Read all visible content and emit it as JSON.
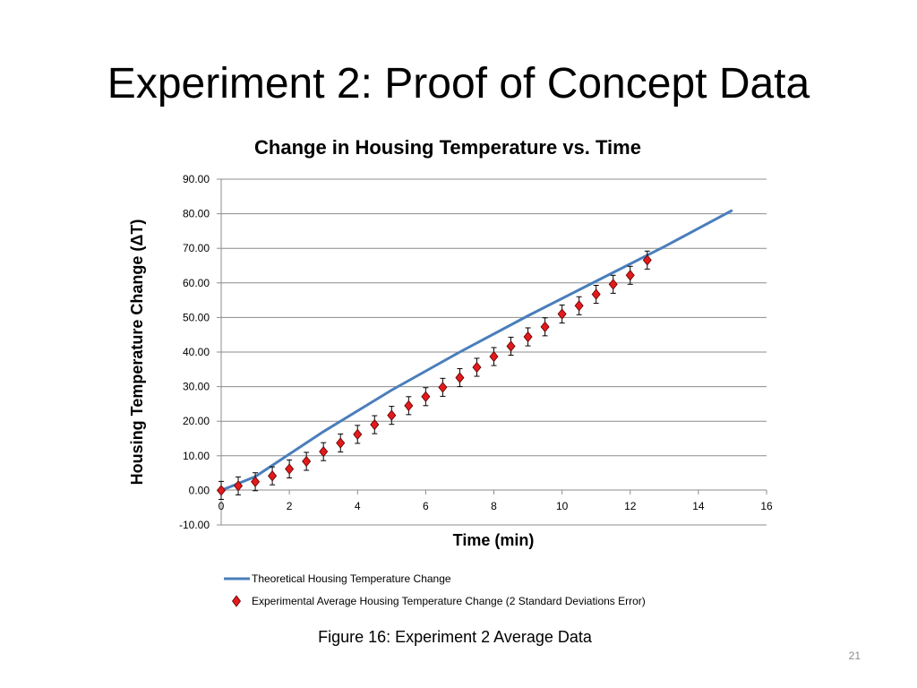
{
  "slide": {
    "title": "Experiment 2: Proof of Concept Data",
    "caption": "Figure 16: Experiment 2 Average Data",
    "page_number": "21"
  },
  "chart_data": {
    "type": "scatter",
    "title": "Change in Housing Temperature vs. Time",
    "xlabel": "Time (min)",
    "ylabel": "Housing Temperature Change (ΔT)",
    "xlim": [
      0,
      16
    ],
    "ylim": [
      -10,
      90
    ],
    "x_ticks": [
      0,
      2,
      4,
      6,
      8,
      10,
      12,
      14,
      16
    ],
    "y_ticks": [
      -10,
      0,
      10,
      20,
      30,
      40,
      50,
      60,
      70,
      80,
      90
    ],
    "grid": "horizontal",
    "legend_position": "bottom",
    "series": [
      {
        "name": "Theoretical Housing Temperature Change",
        "kind": "line",
        "color": "#4a7ebb",
        "x": [
          0,
          1,
          3,
          5,
          7,
          9,
          11,
          13,
          15
        ],
        "y": [
          0,
          4,
          17,
          29,
          40,
          50.5,
          60.5,
          70.5,
          81
        ]
      },
      {
        "name": "Experimental Average Housing Temperature Change (2 Standard Deviations Error)",
        "kind": "markers",
        "color": "#e31a1c",
        "x": [
          0,
          0.5,
          1,
          1.5,
          2,
          2.5,
          3,
          3.5,
          4,
          4.5,
          5,
          5.5,
          6,
          6.5,
          7,
          7.5,
          8,
          8.5,
          9,
          9.5,
          10,
          10.5,
          11,
          11.5,
          12,
          12.5
        ],
        "y": [
          0,
          1.3,
          2.5,
          4.2,
          6.2,
          8.4,
          11.2,
          13.7,
          16.2,
          19,
          21.7,
          24.5,
          27.1,
          29.8,
          32.6,
          35.6,
          38.7,
          41.7,
          44.4,
          47.3,
          51,
          53.4,
          56.7,
          59.6,
          62.2,
          66.6
        ],
        "error": [
          2.6,
          2.6,
          2.6,
          2.6,
          2.6,
          2.6,
          2.6,
          2.6,
          2.6,
          2.6,
          2.6,
          2.6,
          2.6,
          2.6,
          2.6,
          2.6,
          2.6,
          2.6,
          2.6,
          2.6,
          2.6,
          2.6,
          2.6,
          2.6,
          2.6,
          2.6
        ]
      }
    ]
  }
}
